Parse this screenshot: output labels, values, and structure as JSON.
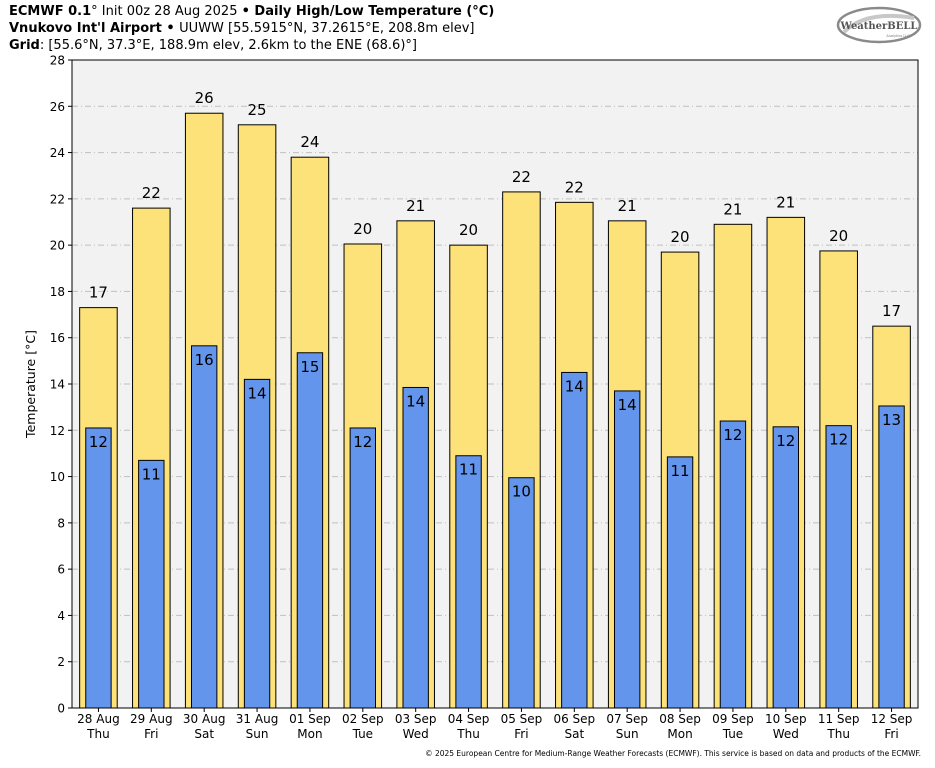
{
  "header": {
    "line1": {
      "model": "ECMWF 0.1",
      "deg": "°",
      "init": " Init 00z 28 Aug 2025 ",
      "bullet": "•",
      "product": " Daily High/Low Temperature (°C)"
    },
    "line2": {
      "station": "Vnukovo Int'l Airport",
      "bullet": " • ",
      "details": "UUWW [55.5915°N, 37.2615°E, 208.8m elev]"
    },
    "line3": {
      "label": "Grid",
      "details": ": [55.6°N, 37.3°E, 188.9m elev, 2.6km to the ENE (68.6)°]"
    }
  },
  "logo": {
    "text": "WeatherBELL",
    "subtext": "Analytics LLC"
  },
  "footer": "© 2025 European Centre for Medium-Range Weather Forecasts (ECMWF). This service is based on data and products of the ECMWF.",
  "colors": {
    "high": "#fde27a",
    "low": "#6495ed",
    "plot_bg": "#f2f2f2",
    "outline": "#000000",
    "grid": "#c0c0c0"
  },
  "chart_data": {
    "type": "bar",
    "title": "Daily High/Low Temperature (°C)",
    "ylabel": "Temperature [°C]",
    "xlabel": "",
    "ylim": [
      0,
      28
    ],
    "yticks": [
      0,
      2,
      4,
      6,
      8,
      10,
      12,
      14,
      16,
      18,
      20,
      22,
      24,
      26,
      28
    ],
    "grid": true,
    "categories": [
      {
        "date": "28 Aug",
        "dow": "Thu"
      },
      {
        "date": "29 Aug",
        "dow": "Fri"
      },
      {
        "date": "30 Aug",
        "dow": "Sat"
      },
      {
        "date": "31 Aug",
        "dow": "Sun"
      },
      {
        "date": "01 Sep",
        "dow": "Mon"
      },
      {
        "date": "02 Sep",
        "dow": "Tue"
      },
      {
        "date": "03 Sep",
        "dow": "Wed"
      },
      {
        "date": "04 Sep",
        "dow": "Thu"
      },
      {
        "date": "05 Sep",
        "dow": "Fri"
      },
      {
        "date": "06 Sep",
        "dow": "Sat"
      },
      {
        "date": "07 Sep",
        "dow": "Sun"
      },
      {
        "date": "08 Sep",
        "dow": "Mon"
      },
      {
        "date": "09 Sep",
        "dow": "Tue"
      },
      {
        "date": "10 Sep",
        "dow": "Wed"
      },
      {
        "date": "11 Sep",
        "dow": "Thu"
      },
      {
        "date": "12 Sep",
        "dow": "Fri"
      }
    ],
    "series": [
      {
        "values": [
          17.3,
          21.6,
          25.7,
          25.2,
          23.8,
          20.05,
          21.05,
          20.0,
          22.3,
          21.85,
          21.05,
          19.7,
          20.9,
          21.2,
          19.75,
          16.5
        ],
        "labels": [
          "17",
          "22",
          "26",
          "25",
          "24",
          "20",
          "21",
          "20",
          "22",
          "22",
          "21",
          "20",
          "21",
          "21",
          "20",
          "17"
        ]
      },
      {
        "values": [
          12.1,
          10.7,
          15.65,
          14.2,
          15.35,
          12.1,
          13.85,
          10.9,
          9.95,
          14.5,
          13.7,
          10.85,
          12.4,
          12.15,
          12.2,
          13.05
        ],
        "labels": [
          "12",
          "11",
          "16",
          "14",
          "15",
          "12",
          "14",
          "11",
          "10",
          "14",
          "14",
          "11",
          "12",
          "12",
          "12",
          "13"
        ]
      }
    ]
  }
}
